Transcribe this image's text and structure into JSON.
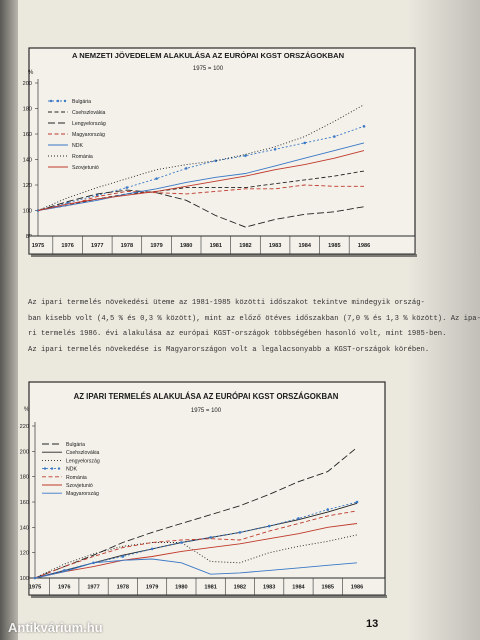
{
  "paragraph": {
    "lines": [
      "Az ipari termelés növekedési üteme az 1981-1985 közötti időszakot tekintve mindegyik ország-",
      "ban kisebb volt (4,5 % és 0,3 % között), mint az előző ötéves időszakban (7,0 % és 1,3 % között). Az ipa-",
      "ri termelés 1986. évi alakulása az európai KGST-országok többségében hasonló volt, mint 1985-ben.",
      "Az ipari termelés növekedése is Magyarországon volt a legalacsonyabb a KGST-országok körében."
    ]
  },
  "page_number": "13",
  "watermark": "Antikvárium.hu",
  "chart_data": [
    {
      "type": "line",
      "title": "A NEMZETI JÖVEDELEM ALAKULÁSA AZ EURÓPAI KGST ORSZÁGOKBAN",
      "subtitle": "1975 = 100",
      "ylabel": "%",
      "ylim": [
        80,
        200
      ],
      "yticks": [
        "200",
        "180",
        "160",
        "140",
        "120",
        "100",
        "80"
      ],
      "x": [
        "1975",
        "1976",
        "1977",
        "1978",
        "1979",
        "1980",
        "1981",
        "1982",
        "1983",
        "1984",
        "1985",
        "1986"
      ],
      "grid": false,
      "legend": "top-left",
      "series": [
        {
          "name": "Bulgária",
          "color": "#3a78c6",
          "dash": "dot-marker",
          "values": [
            100,
            106,
            112,
            118,
            125,
            133,
            139,
            143,
            148,
            153,
            158,
            166
          ]
        },
        {
          "name": "Csehszlovákia",
          "color": "#222222",
          "dash": "dash",
          "values": [
            100,
            104,
            109,
            113,
            115,
            118,
            118,
            118,
            121,
            124,
            127,
            131
          ]
        },
        {
          "name": "Lengyelország",
          "color": "#222222",
          "dash": "long",
          "values": [
            100,
            107,
            113,
            116,
            114,
            108,
            96,
            87,
            93,
            97,
            99,
            103
          ]
        },
        {
          "name": "Magyarország",
          "color": "#c0392b",
          "dash": "dash",
          "values": [
            100,
            104,
            111,
            115,
            114,
            113,
            115,
            117,
            117,
            120,
            119,
            119
          ]
        },
        {
          "name": "NDK",
          "color": "#3a78c6",
          "dash": "solid",
          "values": [
            100,
            104,
            108,
            113,
            117,
            122,
            126,
            129,
            135,
            141,
            147,
            153
          ]
        },
        {
          "name": "Románia",
          "color": "#222222",
          "dash": "dot",
          "values": [
            100,
            110,
            118,
            125,
            132,
            136,
            139,
            144,
            150,
            158,
            170,
            183
          ]
        },
        {
          "name": "Szovjetunió",
          "color": "#c0392b",
          "dash": "solid",
          "values": [
            100,
            105,
            109,
            112,
            115,
            119,
            123,
            127,
            132,
            136,
            141,
            147
          ]
        }
      ]
    },
    {
      "type": "line",
      "title": "AZ IPARI TERMELÉS ALAKULÁSA AZ EURÓPAI KGST ORSZÁGOKBAN",
      "subtitle": "1975 = 100",
      "ylabel": "%",
      "ylim": [
        100,
        220
      ],
      "yticks": [
        "220",
        "200",
        "180",
        "160",
        "140",
        "120",
        "100"
      ],
      "x": [
        "1975",
        "1976",
        "1977",
        "1978",
        "1979",
        "1980",
        "1981",
        "1982",
        "1983",
        "1984",
        "1985",
        "1986"
      ],
      "grid": false,
      "legend": "top-left",
      "series": [
        {
          "name": "Bulgária",
          "color": "#222222",
          "dash": "long",
          "values": [
            100,
            109,
            118,
            128,
            136,
            143,
            150,
            157,
            166,
            176,
            184,
            203
          ]
        },
        {
          "name": "Csehszlovákia",
          "color": "#222222",
          "dash": "solid",
          "values": [
            100,
            106,
            112,
            118,
            123,
            128,
            132,
            136,
            141,
            146,
            152,
            159
          ]
        },
        {
          "name": "Lengyelország",
          "color": "#222222",
          "dash": "dot",
          "values": [
            100,
            111,
            119,
            125,
            128,
            128,
            113,
            112,
            120,
            125,
            129,
            134
          ]
        },
        {
          "name": "NDK",
          "color": "#3a78c6",
          "dash": "dot-marker",
          "values": [
            100,
            106,
            112,
            117,
            123,
            128,
            132,
            136,
            141,
            147,
            154,
            160
          ]
        },
        {
          "name": "Románia",
          "color": "#c0392b",
          "dash": "dash",
          "values": [
            100,
            109,
            117,
            124,
            128,
            130,
            131,
            130,
            137,
            143,
            149,
            153
          ]
        },
        {
          "name": "Szovjetunió",
          "color": "#c0392b",
          "dash": "solid",
          "values": [
            100,
            105,
            109,
            114,
            117,
            121,
            124,
            127,
            131,
            135,
            140,
            143
          ]
        },
        {
          "name": "Magyarország",
          "color": "#3a78c6",
          "dash": "solid",
          "values": [
            100,
            105,
            112,
            114,
            115,
            112,
            103,
            104,
            106,
            108,
            110,
            112
          ]
        }
      ]
    }
  ]
}
